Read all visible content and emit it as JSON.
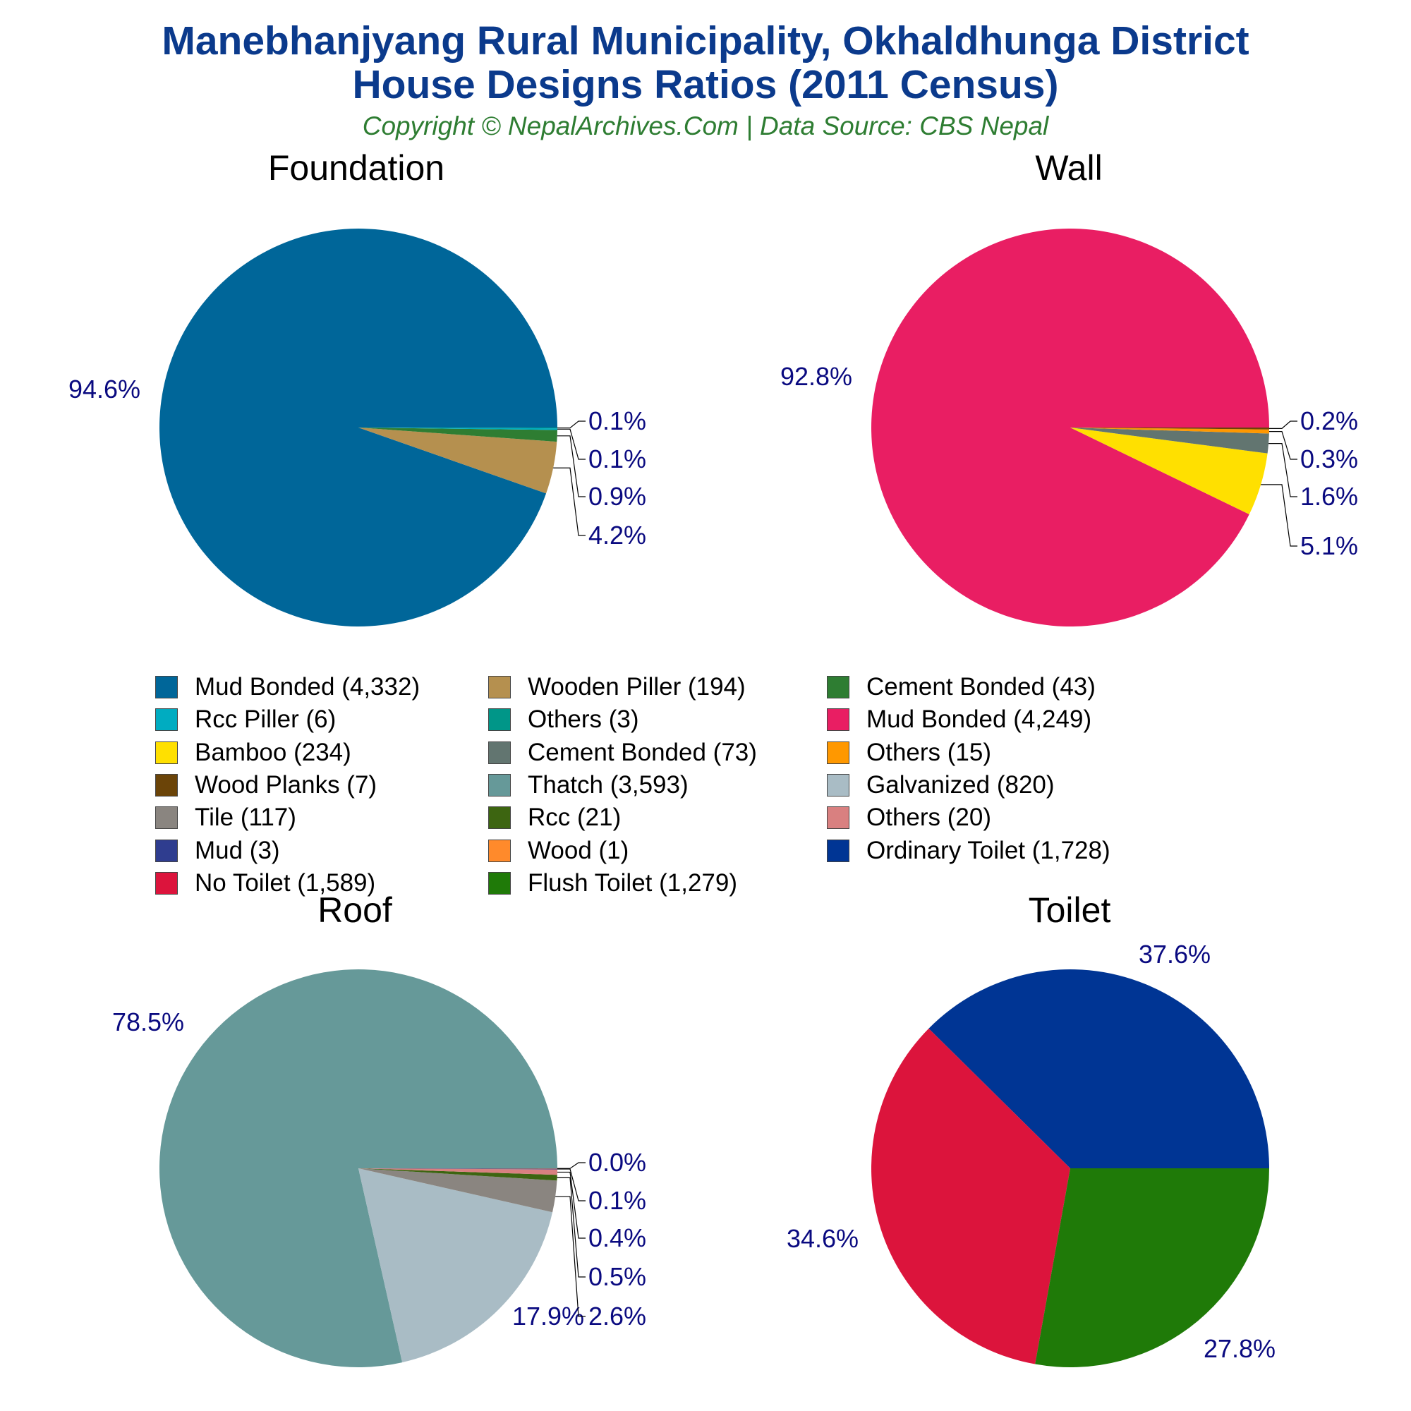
{
  "title_line1": "Manebhanjyang Rural Municipality, Okhaldhunga District",
  "title_line2": "House Designs Ratios (2011 Census)",
  "subtitle": "Copyright © NepalArchives.Com | Data Source: CBS Nepal",
  "chart_data": [
    {
      "type": "pie",
      "title": "Foundation",
      "slices": [
        {
          "label": "Mud Bonded",
          "value": 4332,
          "pct": "94.6%",
          "color": "#006699"
        },
        {
          "label": "Wooden Piller",
          "value": 194,
          "pct": "4.2%",
          "color": "#B5904F"
        },
        {
          "label": "Cement Bonded",
          "value": 43,
          "pct": "0.9%",
          "color": "#2E7D32"
        },
        {
          "label": "Rcc Piller",
          "value": 6,
          "pct": "0.1%",
          "color": "#00ACC1"
        },
        {
          "label": "Others",
          "value": 3,
          "pct": "0.1%",
          "color": "#009688"
        }
      ]
    },
    {
      "type": "pie",
      "title": "Wall",
      "slices": [
        {
          "label": "Mud Bonded",
          "value": 4249,
          "pct": "92.8%",
          "color": "#E91E63"
        },
        {
          "label": "Bamboo",
          "value": 234,
          "pct": "5.1%",
          "color": "#FFE000"
        },
        {
          "label": "Cement Bonded",
          "value": 73,
          "pct": "1.6%",
          "color": "#627570"
        },
        {
          "label": "Others",
          "value": 15,
          "pct": "0.3%",
          "color": "#FF9800"
        },
        {
          "label": "Wood Planks",
          "value": 7,
          "pct": "0.2%",
          "color": "#6B4408"
        }
      ]
    },
    {
      "type": "pie",
      "title": "Roof",
      "slices": [
        {
          "label": "Thatch",
          "value": 3593,
          "pct": "78.5%",
          "color": "#669999"
        },
        {
          "label": "Galvanized",
          "value": 820,
          "pct": "17.9%",
          "color": "#A9BCC5"
        },
        {
          "label": "Tile",
          "value": 117,
          "pct": "2.6%",
          "color": "#8A8580"
        },
        {
          "label": "Rcc",
          "value": 21,
          "pct": "0.5%",
          "color": "#3D6511"
        },
        {
          "label": "Others",
          "value": 20,
          "pct": "0.4%",
          "color": "#D98080"
        },
        {
          "label": "Mud",
          "value": 3,
          "pct": "0.1%",
          "color": "#2F3D8F"
        },
        {
          "label": "Wood",
          "value": 1,
          "pct": "0.0%",
          "color": "#FF8A2B"
        }
      ]
    },
    {
      "type": "pie",
      "title": "Toilet",
      "slices": [
        {
          "label": "Ordinary Toilet",
          "value": 1728,
          "pct": "37.6%",
          "color": "#003594"
        },
        {
          "label": "No Toilet",
          "value": 1589,
          "pct": "34.6%",
          "color": "#DC143C"
        },
        {
          "label": "Flush Toilet",
          "value": 1279,
          "pct": "27.8%",
          "color": "#1F7A08"
        }
      ]
    }
  ],
  "legend": [
    {
      "label": "Mud Bonded (4,332)",
      "color": "#006699"
    },
    {
      "label": "Wooden Piller (194)",
      "color": "#B5904F"
    },
    {
      "label": "Cement Bonded (43)",
      "color": "#2E7D32"
    },
    {
      "label": "Rcc Piller (6)",
      "color": "#00ACC1"
    },
    {
      "label": "Others (3)",
      "color": "#009688"
    },
    {
      "label": "Mud Bonded (4,249)",
      "color": "#E91E63"
    },
    {
      "label": "Bamboo (234)",
      "color": "#FFE000"
    },
    {
      "label": "Cement Bonded (73)",
      "color": "#627570"
    },
    {
      "label": "Others (15)",
      "color": "#FF9800"
    },
    {
      "label": "Wood Planks (7)",
      "color": "#6B4408"
    },
    {
      "label": "Thatch (3,593)",
      "color": "#669999"
    },
    {
      "label": "Galvanized (820)",
      "color": "#A9BCC5"
    },
    {
      "label": "Tile (117)",
      "color": "#8A8580"
    },
    {
      "label": "Rcc (21)",
      "color": "#3D6511"
    },
    {
      "label": "Others (20)",
      "color": "#D98080"
    },
    {
      "label": "Mud (3)",
      "color": "#2F3D8F"
    },
    {
      "label": "Wood (1)",
      "color": "#FF8A2B"
    },
    {
      "label": "Ordinary Toilet (1,728)",
      "color": "#003594"
    },
    {
      "label": "No Toilet (1,589)",
      "color": "#DC143C"
    },
    {
      "label": "Flush Toilet (1,279)",
      "color": "#1F7A08"
    }
  ]
}
